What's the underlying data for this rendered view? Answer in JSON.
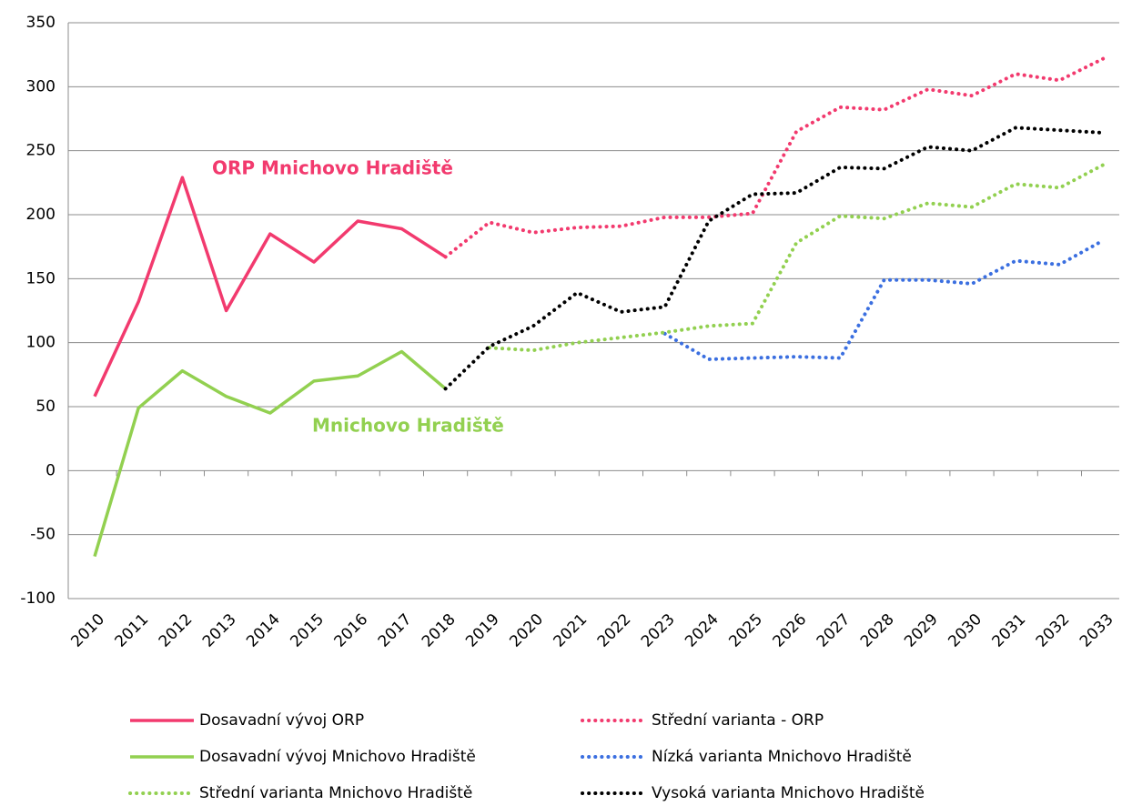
{
  "chart_data": {
    "type": "line",
    "categories": [
      "2010",
      "2011",
      "2012",
      "2013",
      "2014",
      "2015",
      "2016",
      "2017",
      "2018",
      "2019",
      "2020",
      "2021",
      "2022",
      "2023",
      "2024",
      "2025",
      "2026",
      "2027",
      "2028",
      "2029",
      "2030",
      "2031",
      "2032",
      "2033"
    ],
    "ylim": [
      -100,
      350
    ],
    "yticks": [
      -100,
      -50,
      0,
      50,
      100,
      150,
      200,
      250,
      300,
      350
    ],
    "grid": true,
    "annotations": [
      {
        "text": "ORP Mnichovo Hradiště",
        "color": "#f23a6e"
      },
      {
        "text": "Mnichovo Hradiště",
        "color": "#92d050"
      }
    ],
    "series": [
      {
        "name": "Dosavadní vývoj ORP",
        "color": "#f23a6e",
        "style": "solid",
        "values": [
          58,
          132,
          229,
          125,
          185,
          163,
          195,
          189,
          167,
          null,
          null,
          null,
          null,
          null,
          null,
          null,
          null,
          null,
          null,
          null,
          null,
          null,
          null,
          null
        ]
      },
      {
        "name": "Střední varianta - ORP",
        "color": "#f23a6e",
        "style": "dotted",
        "values": [
          null,
          null,
          null,
          null,
          null,
          null,
          null,
          null,
          167,
          194,
          186,
          190,
          191,
          198,
          198,
          201,
          265,
          284,
          282,
          298,
          293,
          310,
          305,
          322
        ]
      },
      {
        "name": "Dosavadní vývoj Mnichovo Hradiště",
        "color": "#92d050",
        "style": "solid",
        "values": [
          -67,
          49,
          78,
          58,
          45,
          70,
          74,
          93,
          64,
          null,
          null,
          null,
          null,
          null,
          null,
          null,
          null,
          null,
          null,
          null,
          null,
          null,
          null,
          null
        ]
      },
      {
        "name": "Nízká varianta Mnichovo Hradiště",
        "color": "#3b6fe0",
        "style": "dotted",
        "values": [
          null,
          null,
          null,
          null,
          null,
          null,
          null,
          null,
          null,
          null,
          null,
          null,
          null,
          107,
          87,
          88,
          89,
          88,
          149,
          149,
          146,
          164,
          161,
          180
        ]
      },
      {
        "name": "Střední varianta  Mnichovo Hradiště",
        "color": "#92d050",
        "style": "dotted",
        "values": [
          null,
          null,
          null,
          null,
          null,
          null,
          null,
          null,
          null,
          96,
          94,
          100,
          104,
          108,
          113,
          115,
          178,
          199,
          197,
          209,
          206,
          224,
          221,
          239
        ]
      },
      {
        "name": "Vysoká varianta Mnichovo Hradiště",
        "color": "#000000",
        "style": "dotted",
        "values": [
          null,
          null,
          null,
          null,
          null,
          null,
          null,
          null,
          64,
          97,
          113,
          139,
          124,
          128,
          195,
          216,
          217,
          237,
          236,
          253,
          250,
          268,
          266,
          264
        ]
      }
    ]
  }
}
